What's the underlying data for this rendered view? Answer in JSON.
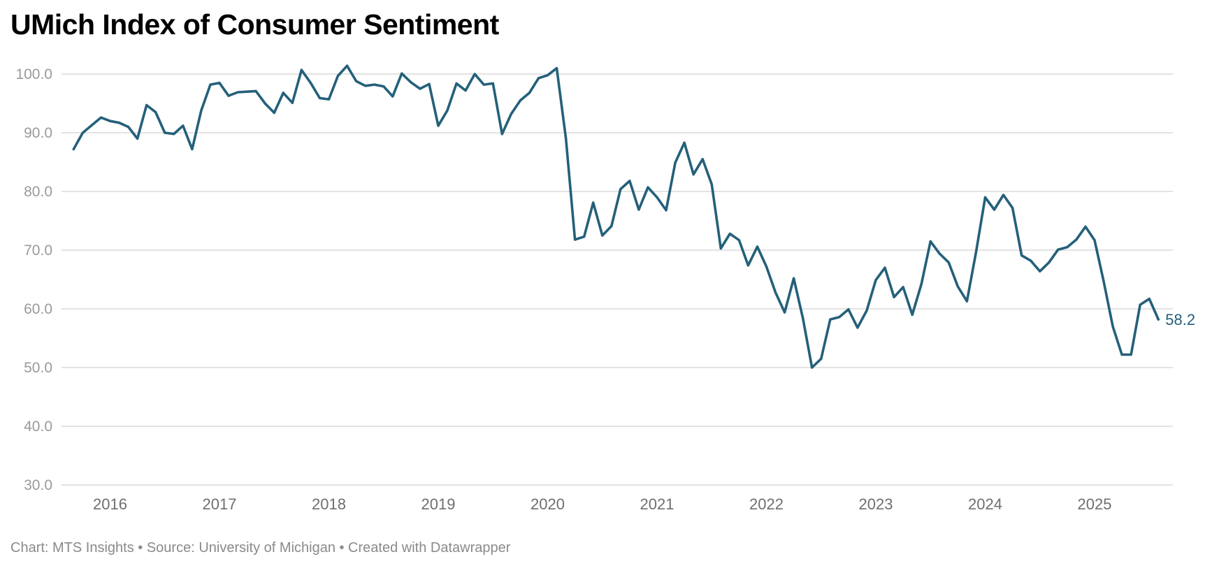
{
  "chart_data": {
    "type": "line",
    "title": "UMich Index of Consumer Sentiment",
    "xlabel": "",
    "ylabel": "",
    "ylim": [
      30,
      100
    ],
    "yticks": [
      "100.0",
      "90.0",
      "80.0",
      "70.0",
      "60.0",
      "50.0",
      "40.0",
      "30.0"
    ],
    "ytick_values": [
      100,
      90,
      80,
      70,
      60,
      50,
      40,
      30
    ],
    "xticks": [
      "2016",
      "2017",
      "2018",
      "2019",
      "2020",
      "2021",
      "2022",
      "2023",
      "2024",
      "2025"
    ],
    "grid": true,
    "legend": "none",
    "x_start": "2015-09",
    "x_end": "2025-08",
    "x_frequency": "monthly",
    "series": [
      {
        "name": "Index of Consumer Sentiment",
        "color": "#24607a",
        "end_label": "58.2",
        "values": [
          87.2,
          90.0,
          91.3,
          92.6,
          92.0,
          91.7,
          91.0,
          89.0,
          94.7,
          93.5,
          90.0,
          89.8,
          91.2,
          87.2,
          93.8,
          98.2,
          98.5,
          96.3,
          96.9,
          97.0,
          97.1,
          95.0,
          93.4,
          96.8,
          95.1,
          100.7,
          98.5,
          95.9,
          95.7,
          99.7,
          101.4,
          98.8,
          98.0,
          98.2,
          97.9,
          96.2,
          100.1,
          98.6,
          97.5,
          98.3,
          91.2,
          93.8,
          98.4,
          97.2,
          100.0,
          98.2,
          98.4,
          89.8,
          93.2,
          95.5,
          96.8,
          99.3,
          99.8,
          101.0,
          89.1,
          71.8,
          72.3,
          78.1,
          72.5,
          74.1,
          80.4,
          81.8,
          76.9,
          80.7,
          79.0,
          76.8,
          84.9,
          88.3,
          82.9,
          85.5,
          81.2,
          70.3,
          72.8,
          71.7,
          67.4,
          70.6,
          67.2,
          62.8,
          59.4,
          65.2,
          58.4,
          50.0,
          51.5,
          58.2,
          58.6,
          59.9,
          56.8,
          59.7,
          64.9,
          67.0,
          62.0,
          63.7,
          59.0,
          64.2,
          71.5,
          69.4,
          67.9,
          63.8,
          61.3,
          69.7,
          79.0,
          76.9,
          79.4,
          77.2,
          69.1,
          68.2,
          66.4,
          67.9,
          70.1,
          70.5,
          71.8,
          74.0,
          71.7,
          64.7,
          57.0,
          52.2,
          52.2,
          60.7,
          61.7,
          58.2
        ]
      }
    ]
  },
  "footer": {
    "text": "Chart: MTS Insights • Source: University of Michigan • Created with Datawrapper"
  }
}
